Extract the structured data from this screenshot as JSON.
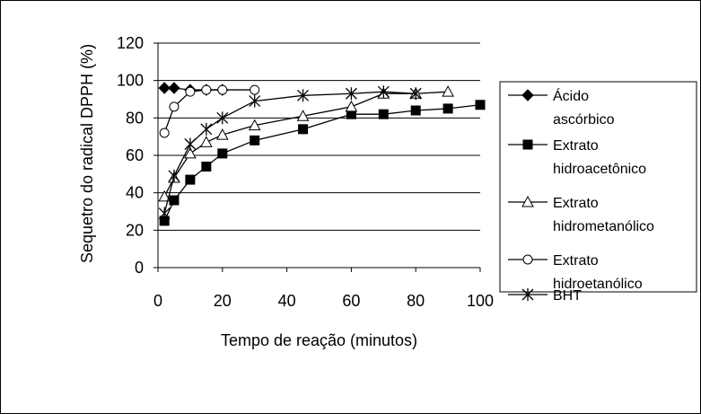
{
  "chart_data": {
    "type": "line",
    "xlabel": "Tempo de reação (minutos)",
    "ylabel": "Sequetro do radical DPPH (%)",
    "xlim": [
      0,
      100
    ],
    "ylim": [
      0,
      120
    ],
    "x_ticks": [
      "0",
      "20",
      "40",
      "60",
      "80",
      "100"
    ],
    "y_ticks": [
      "0",
      "20",
      "40",
      "60",
      "80",
      "100",
      "120"
    ],
    "grid": "horizontal",
    "legend_position": "right",
    "series": [
      {
        "name": "Ácido ascórbico",
        "legend_lines": [
          "Ácido",
          "ascórbico"
        ],
        "marker": "diamond-filled",
        "points": [
          [
            2,
            96
          ],
          [
            5,
            96
          ],
          [
            10,
            95
          ],
          [
            15,
            95
          ],
          [
            20,
            95
          ]
        ]
      },
      {
        "name": "Extrato hidroacetônico",
        "legend_lines": [
          "Extrato",
          "hidroacetônico"
        ],
        "marker": "square-filled",
        "points": [
          [
            2,
            25
          ],
          [
            5,
            36
          ],
          [
            10,
            47
          ],
          [
            15,
            54
          ],
          [
            20,
            61
          ],
          [
            30,
            68
          ],
          [
            45,
            74
          ],
          [
            60,
            82
          ],
          [
            70,
            82
          ],
          [
            80,
            84
          ],
          [
            90,
            85
          ],
          [
            100,
            87
          ]
        ]
      },
      {
        "name": "Extrato hidrometanólico",
        "legend_lines": [
          "Extrato",
          "hidrometanólico"
        ],
        "marker": "triangle-open",
        "points": [
          [
            2,
            38
          ],
          [
            5,
            48
          ],
          [
            10,
            61
          ],
          [
            15,
            67
          ],
          [
            20,
            71
          ],
          [
            30,
            76
          ],
          [
            45,
            81
          ],
          [
            60,
            86
          ],
          [
            70,
            93
          ],
          [
            80,
            93
          ],
          [
            90,
            94
          ]
        ]
      },
      {
        "name": "Extrato hidroetanólico",
        "legend_lines": [
          "Extrato",
          "hidroetanólico"
        ],
        "marker": "circle-open",
        "points": [
          [
            2,
            72
          ],
          [
            5,
            86
          ],
          [
            10,
            94
          ],
          [
            15,
            95
          ],
          [
            20,
            95
          ],
          [
            30,
            95
          ]
        ]
      },
      {
        "name": "BHT",
        "legend_lines": [
          "BHT"
        ],
        "marker": "star",
        "points": [
          [
            2,
            29
          ],
          [
            5,
            49
          ],
          [
            10,
            66
          ],
          [
            15,
            74
          ],
          [
            20,
            80
          ],
          [
            30,
            89
          ],
          [
            45,
            92
          ],
          [
            60,
            93
          ],
          [
            70,
            94
          ],
          [
            80,
            93
          ]
        ]
      }
    ]
  }
}
